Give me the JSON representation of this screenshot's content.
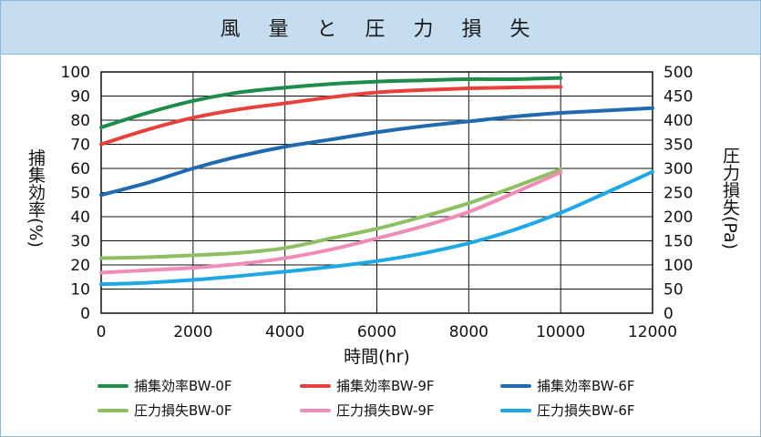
{
  "title": "風 量 と 圧 力 損 失",
  "chart_data": {
    "type": "line",
    "xlabel": "時間(hr)",
    "ylabel_left": "捕集効率(%)",
    "ylabel_right": "圧力損失(Pa)",
    "xlim": [
      0,
      12000
    ],
    "ylim_left": [
      0,
      100
    ],
    "ylim_right": [
      0,
      500
    ],
    "x_ticks": [
      "0",
      "2000",
      "4000",
      "6000",
      "8000",
      "10000",
      "12000"
    ],
    "y_left_ticks": [
      "0",
      "10",
      "20",
      "30",
      "40",
      "50",
      "60",
      "70",
      "80",
      "90",
      "100"
    ],
    "y_right_ticks": [
      "0",
      "50",
      "100",
      "150",
      "200",
      "250",
      "300",
      "350",
      "400",
      "450",
      "500"
    ],
    "grid": true,
    "legend_position": "bottom",
    "series": [
      {
        "name": "捕集効率BW-0F",
        "axis": "left",
        "color": "#1e8c4a",
        "x": [
          0,
          1000,
          2000,
          3000,
          4000,
          5000,
          6000,
          7000,
          8000,
          9000,
          10000
        ],
        "y": [
          77,
          83,
          88,
          91.5,
          93.5,
          95,
          96,
          96.5,
          97,
          97,
          97.5
        ]
      },
      {
        "name": "捕集効率BW-9F",
        "axis": "left",
        "color": "#e8413c",
        "x": [
          0,
          1000,
          2000,
          3000,
          4000,
          5000,
          6000,
          7000,
          8000,
          9000,
          10000
        ],
        "y": [
          70,
          76,
          81,
          84.5,
          87,
          89.5,
          91.5,
          92.5,
          93.2,
          93.6,
          93.8
        ]
      },
      {
        "name": "捕集効率BW-6F",
        "axis": "left",
        "color": "#1f6ab1",
        "x": [
          0,
          1000,
          2000,
          3000,
          4000,
          5000,
          6000,
          7000,
          8000,
          9000,
          10000,
          11000,
          12000
        ],
        "y": [
          49,
          54,
          60,
          65,
          69,
          72,
          75,
          77.5,
          79.5,
          81.5,
          83,
          84,
          85
        ]
      },
      {
        "name": "圧力損失BW-0F",
        "axis": "right",
        "color": "#8cc063",
        "x": [
          0,
          1000,
          2000,
          3000,
          4000,
          5000,
          6000,
          7000,
          8000,
          9000,
          10000
        ],
        "y": [
          114,
          116,
          120,
          125,
          135,
          155,
          175,
          200,
          228,
          262,
          298
        ]
      },
      {
        "name": "圧力損失BW-9F",
        "axis": "right",
        "color": "#f08cb8",
        "x": [
          0,
          1000,
          2000,
          3000,
          4000,
          5000,
          6000,
          7000,
          8000,
          9000,
          10000
        ],
        "y": [
          84,
          89,
          94,
          102,
          114,
          132,
          155,
          180,
          210,
          250,
          292
        ]
      },
      {
        "name": "圧力損失BW-6F",
        "axis": "right",
        "color": "#20a8e4",
        "x": [
          0,
          1000,
          2000,
          3000,
          4000,
          5000,
          6000,
          7000,
          8000,
          9000,
          10000,
          11000,
          12000
        ],
        "y": [
          60,
          63,
          69,
          77,
          86,
          96,
          108,
          124,
          145,
          173,
          208,
          250,
          293
        ]
      }
    ]
  }
}
